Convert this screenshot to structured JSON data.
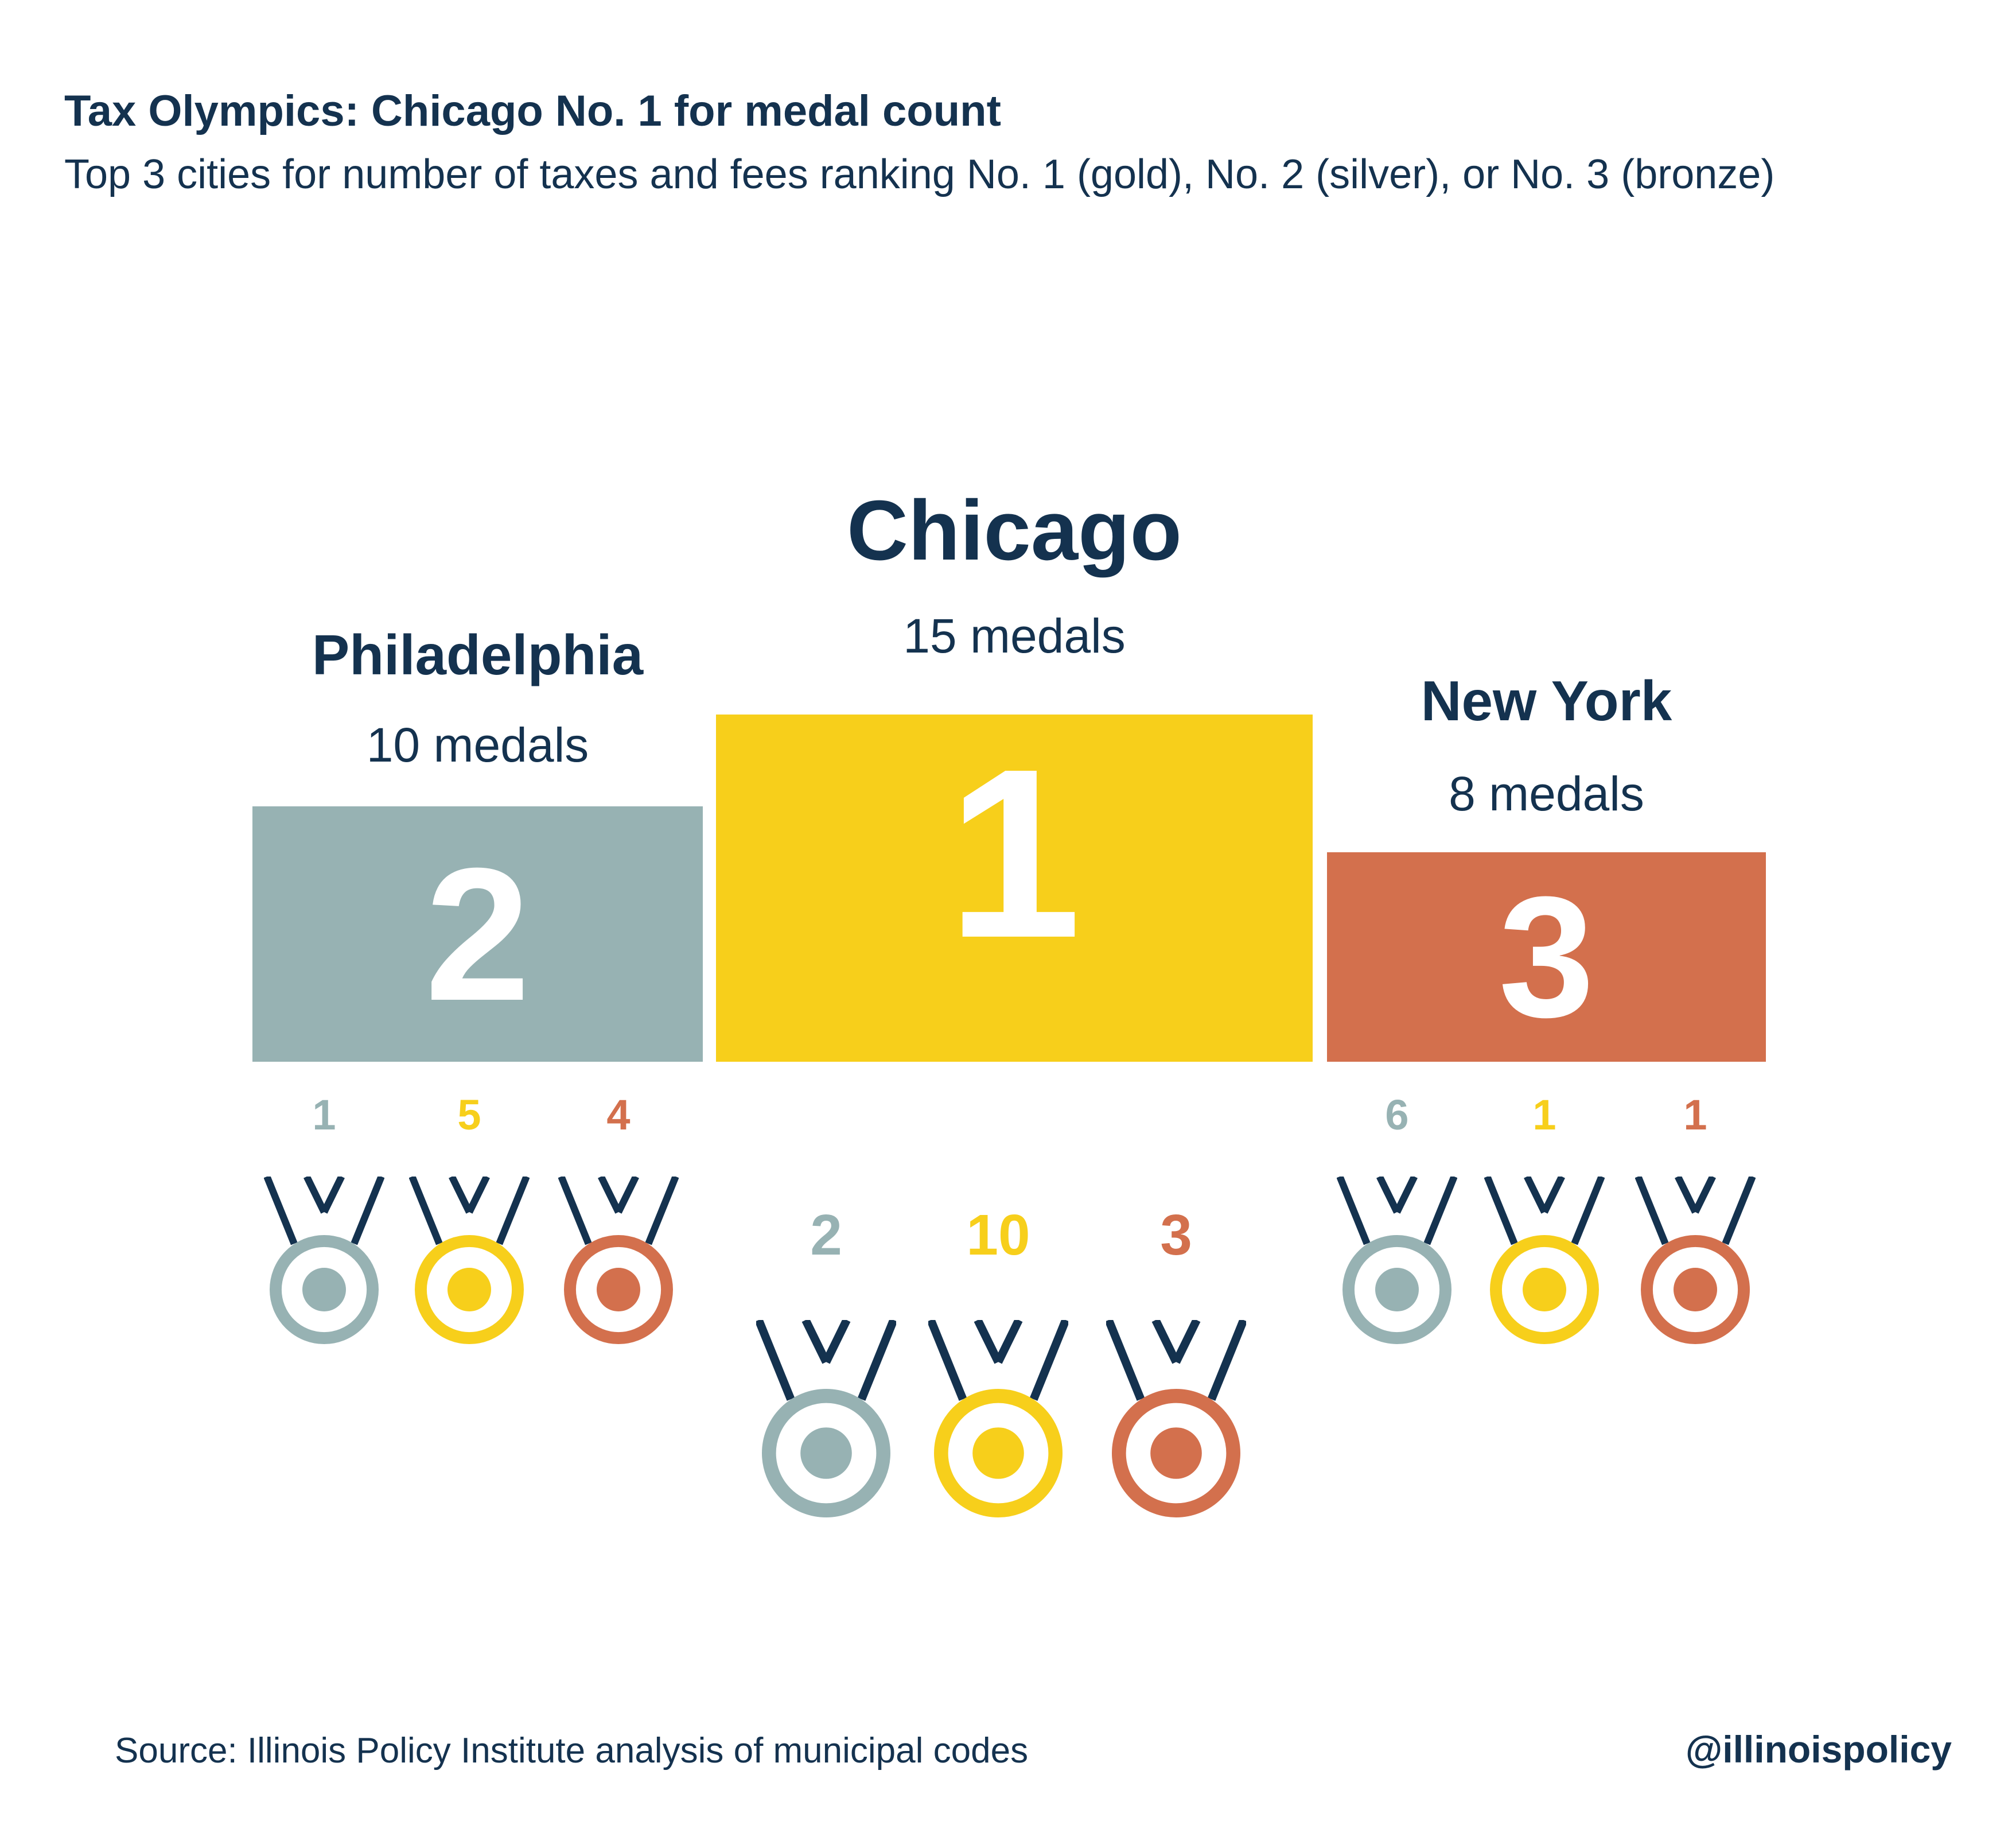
{
  "title": "Tax Olympics: Chicago No. 1 for medal count",
  "subtitle": "Top 3 cities for number of taxes and fees ranking No. 1 (gold), No. 2 (silver), or No. 3 (bronze)",
  "source": "Source: Illinois Policy Institute analysis of municipal codes",
  "handle": "@illinoispolicy",
  "colors": {
    "silver": "#97b2b3",
    "gold": "#f7cf1b",
    "bronze": "#d3704d",
    "navy": "#14324f"
  },
  "chart_data": {
    "type": "bar",
    "categories": [
      "Philadelphia",
      "Chicago",
      "New York"
    ],
    "values": [
      10,
      15,
      8
    ],
    "cities": [
      {
        "name": "Philadelphia",
        "total_label": "10 medals",
        "total": 10,
        "rank": "2",
        "rank_color": "#97b2b3",
        "medals": [
          {
            "type": "silver",
            "count": 1,
            "label": "1"
          },
          {
            "type": "gold",
            "count": 5,
            "label": "5"
          },
          {
            "type": "bronze",
            "count": 4,
            "label": "4"
          }
        ]
      },
      {
        "name": "Chicago",
        "total_label": "15 medals",
        "total": 15,
        "rank": "1",
        "rank_color": "#f7cf1b",
        "medals": [
          {
            "type": "silver",
            "count": 2,
            "label": "2"
          },
          {
            "type": "gold",
            "count": 10,
            "label": "10"
          },
          {
            "type": "bronze",
            "count": 3,
            "label": "3"
          }
        ]
      },
      {
        "name": "New York",
        "total_label": "8 medals",
        "total": 8,
        "rank": "3",
        "rank_color": "#d3704d",
        "medals": [
          {
            "type": "silver",
            "count": 6,
            "label": "6"
          },
          {
            "type": "gold",
            "count": 1,
            "label": "1"
          },
          {
            "type": "bronze",
            "count": 1,
            "label": "1"
          }
        ]
      }
    ]
  }
}
